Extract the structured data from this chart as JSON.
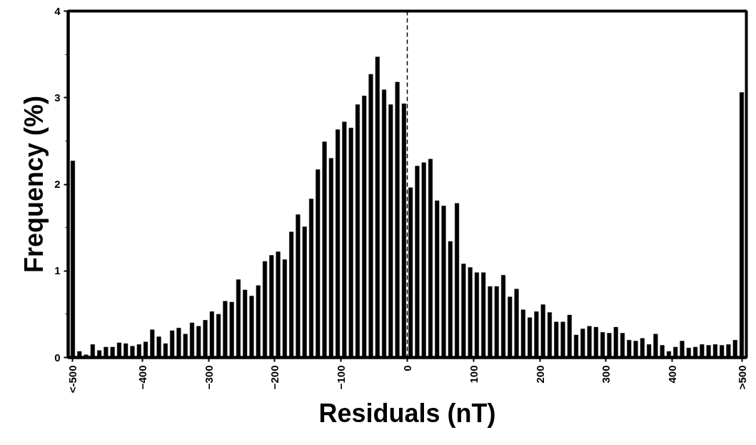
{
  "chart_data": {
    "type": "histogram",
    "xlabel": "Residuals (nT)",
    "ylabel": "Frequency (%)",
    "bins": [
      -510,
      -500,
      -490,
      -480,
      -470,
      -460,
      -450,
      -440,
      -430,
      -420,
      -410,
      -400,
      -390,
      -380,
      -370,
      -360,
      -350,
      -340,
      -330,
      -320,
      -310,
      -300,
      -290,
      -280,
      -270,
      -260,
      -250,
      -240,
      -230,
      -220,
      -210,
      -200,
      -190,
      -180,
      -170,
      -160,
      -150,
      -140,
      -130,
      -120,
      -110,
      -100,
      -90,
      -80,
      -70,
      -60,
      -50,
      -40,
      -30,
      -20,
      -10,
      0,
      10,
      20,
      30,
      40,
      50,
      60,
      70,
      80,
      90,
      100,
      110,
      120,
      130,
      140,
      150,
      160,
      170,
      180,
      190,
      200,
      210,
      220,
      230,
      240,
      250,
      260,
      270,
      280,
      290,
      300,
      310,
      320,
      330,
      340,
      350,
      360,
      370,
      380,
      390,
      400,
      410,
      420,
      430,
      440,
      450,
      460,
      470,
      480,
      490,
      500,
      510
    ],
    "values": [
      2.27,
      0.07,
      0.03,
      0.15,
      0.08,
      0.12,
      0.12,
      0.17,
      0.16,
      0.13,
      0.15,
      0.18,
      0.32,
      0.24,
      0.16,
      0.31,
      0.34,
      0.27,
      0.4,
      0.36,
      0.43,
      0.53,
      0.5,
      0.65,
      0.64,
      0.9,
      0.78,
      0.71,
      0.83,
      1.11,
      1.18,
      1.22,
      1.13,
      1.45,
      1.65,
      1.51,
      1.83,
      2.17,
      2.49,
      2.3,
      2.63,
      2.72,
      2.65,
      2.92,
      3.02,
      3.27,
      3.47,
      3.09,
      2.92,
      3.18,
      2.93,
      1.96,
      2.21,
      2.25,
      2.29,
      1.81,
      1.75,
      1.34,
      1.78,
      1.08,
      1.04,
      0.98,
      0.98,
      0.82,
      0.82,
      0.95,
      0.7,
      0.79,
      0.55,
      0.46,
      0.53,
      0.61,
      0.52,
      0.41,
      0.41,
      0.49,
      0.26,
      0.33,
      0.36,
      0.35,
      0.29,
      0.28,
      0.35,
      0.28,
      0.2,
      0.19,
      0.22,
      0.15,
      0.27,
      0.14,
      0.07,
      0.12,
      0.19,
      0.11,
      0.12,
      0.15,
      0.14,
      0.15,
      0.14,
      0.15,
      0.2,
      3.06
    ],
    "color": "#000000",
    "xlim": [
      -512,
      512
    ],
    "ylim": [
      0,
      4
    ],
    "xticks": [
      {
        "value": -505,
        "label": "<-500"
      },
      -400,
      -300,
      -200,
      -100,
      0,
      100,
      200,
      300,
      400,
      {
        "value": 505,
        "label": ">500"
      }
    ],
    "yticks": [
      0,
      1,
      2,
      3,
      4
    ],
    "ref_lines": [
      {
        "axis": "x",
        "value": 0,
        "line_style": "dashed",
        "color": "#000000"
      }
    ],
    "grid": false
  }
}
